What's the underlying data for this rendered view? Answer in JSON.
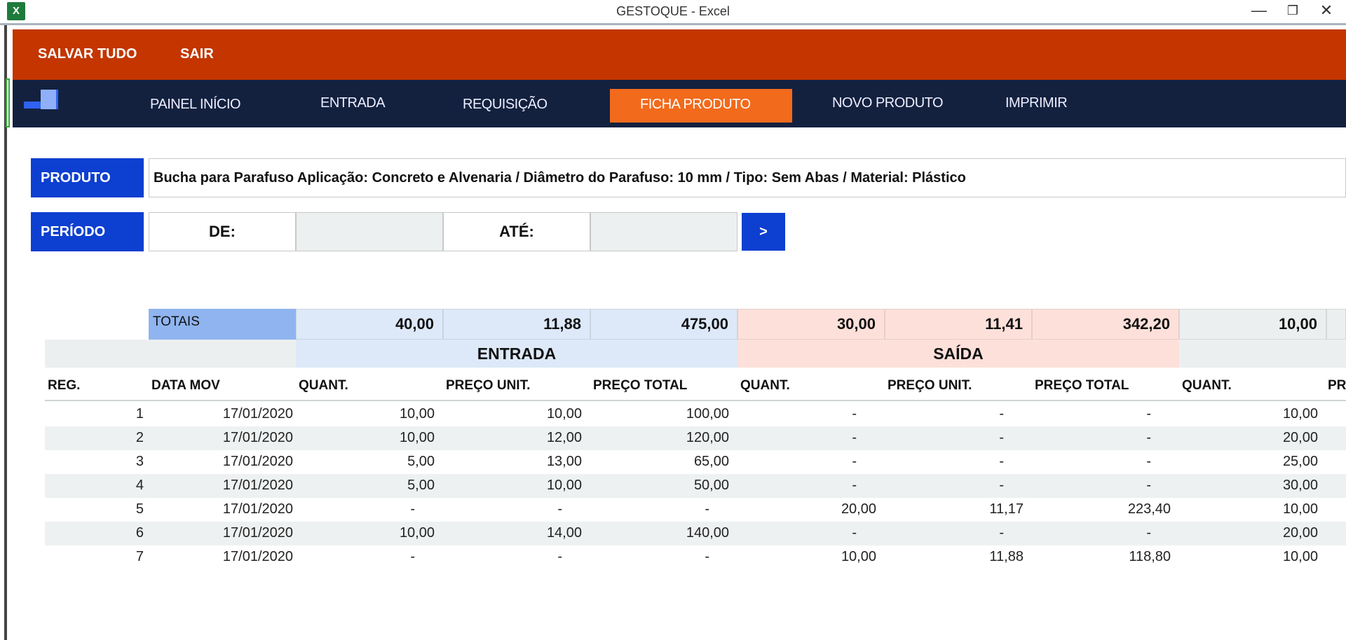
{
  "window": {
    "title": "GESTOQUE - Excel",
    "icon": "excel-icon",
    "controls": [
      "minimize-icon",
      "restore-icon",
      "close-icon"
    ]
  },
  "toolbar": {
    "save_all": "SALVAR TUDO",
    "exit": "SAIR"
  },
  "nav": {
    "items": [
      "PAINEL INÍCIO",
      "ENTRADA",
      "REQUISIÇÃO",
      "FICHA PRODUTO",
      "NOVO PRODUTO",
      "IMPRIMIR"
    ],
    "active": "FICHA PRODUTO"
  },
  "product": {
    "label": "PRODUTO",
    "value": "Bucha para Parafuso Aplicação: Concreto e Alvenaria / Diâmetro do Parafuso: 10 mm / Tipo: Sem Abas / Material: Plástico"
  },
  "period": {
    "label": "PERÍODO",
    "from_label": "DE:",
    "from_value": "",
    "to_label": "ATÉ:",
    "to_value": "",
    "go": ">"
  },
  "totals": {
    "label": "TOTAIS",
    "entrada": [
      "40,00",
      "11,88",
      "475,00"
    ],
    "saida": [
      "30,00",
      "11,41",
      "342,20"
    ],
    "saldo": [
      "10,00"
    ]
  },
  "sections": {
    "entrada": "ENTRADA",
    "saida": "SAÍDA"
  },
  "columns": [
    "REG.",
    "DATA MOV",
    "QUANT.",
    "PREÇO UNIT.",
    "PREÇO TOTAL",
    "QUANT.",
    "PREÇO UNIT.",
    "PREÇO TOTAL",
    "QUANT.",
    "PR"
  ],
  "rows": [
    [
      "1",
      "17/01/2020",
      "10,00",
      "10,00",
      "100,00",
      "-",
      "-",
      "-",
      "10,00"
    ],
    [
      "2",
      "17/01/2020",
      "10,00",
      "12,00",
      "120,00",
      "-",
      "-",
      "-",
      "20,00"
    ],
    [
      "3",
      "17/01/2020",
      "5,00",
      "13,00",
      "65,00",
      "-",
      "-",
      "-",
      "25,00"
    ],
    [
      "4",
      "17/01/2020",
      "5,00",
      "10,00",
      "50,00",
      "-",
      "-",
      "-",
      "30,00"
    ],
    [
      "5",
      "17/01/2020",
      "-",
      "-",
      "-",
      "20,00",
      "11,17",
      "223,40",
      "10,00"
    ],
    [
      "6",
      "17/01/2020",
      "10,00",
      "14,00",
      "140,00",
      "-",
      "-",
      "-",
      "20,00"
    ],
    [
      "7",
      "17/01/2020",
      "-",
      "-",
      "-",
      "10,00",
      "11,88",
      "118,80",
      "10,00"
    ]
  ],
  "colors": {
    "orange": "#c43500",
    "navy": "#13213f",
    "active": "#f26a1b",
    "label_blue": "#0d3fd0",
    "entrada": "#dde9f8",
    "saida": "#fde0da"
  }
}
